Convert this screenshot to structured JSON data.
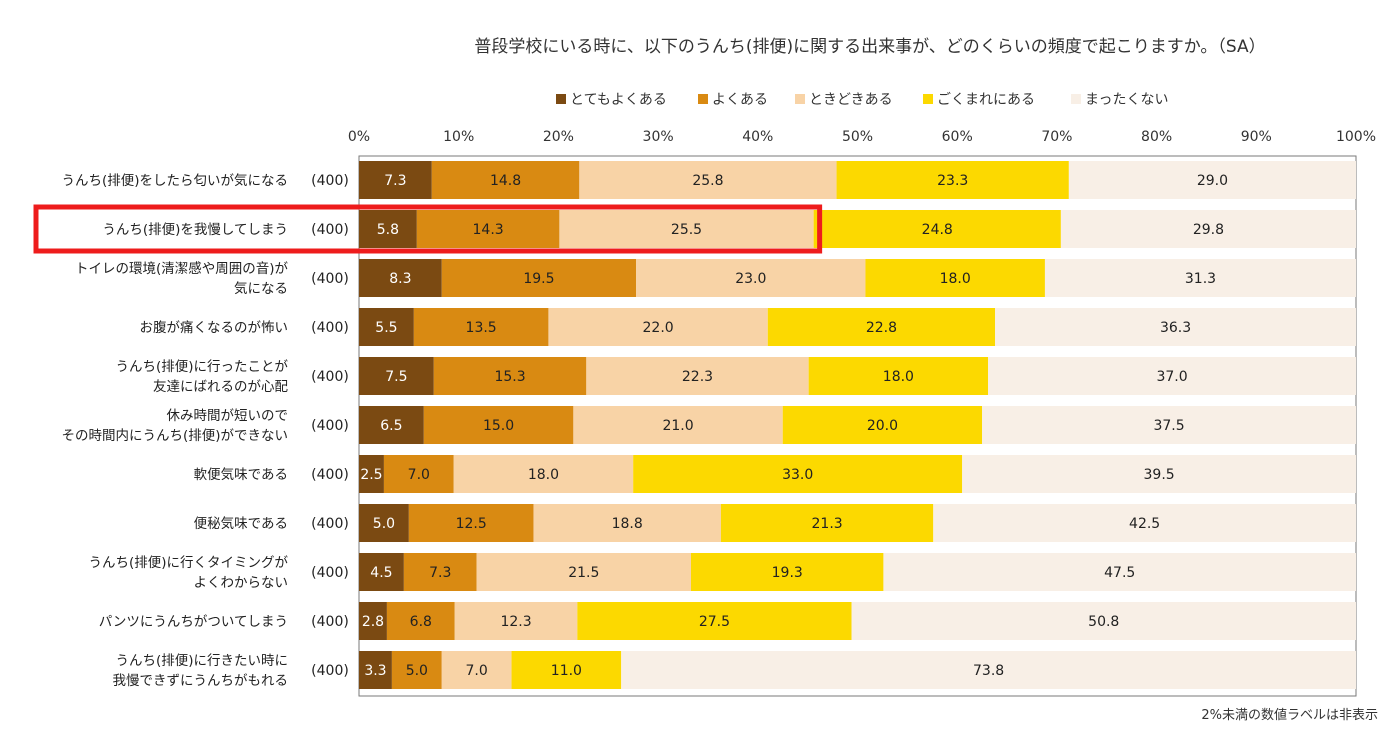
{
  "chart_data": {
    "type": "bar",
    "orientation": "horizontal",
    "stacked": true,
    "title": "普段学校にいる時に、以下のうんち(排便)に関する出来事が、どのくらいの頻度で起こりますか。（SA）",
    "xlim": [
      0,
      100
    ],
    "x_ticks": [
      "0%",
      "10%",
      "20%",
      "30%",
      "40%",
      "50%",
      "60%",
      "70%",
      "80%",
      "90%",
      "100%"
    ],
    "legend_position": "top",
    "footnote": "2%未満の数値ラベルは非表示",
    "categories": [
      "うんち(排便)をしたら匂いが気になる",
      "うんち(排便)を我慢してしまう",
      "トイレの環境(清潔感や周囲の音)が\n気になる",
      "お腹が痛くなるのが怖い",
      "うんち(排便)に行ったことが\n友達にばれるのが心配",
      "休み時間が短いので\nその時間内にうんち(排便)ができない",
      "軟便気味である",
      "便秘気味である",
      "うんち(排便)に行くタイミングが\nよくわからない",
      "パンツにうんちがついてしまう",
      "うんち(排便)に行きたい時に\n我慢できずにうんちがもれる"
    ],
    "n_labels": [
      "(400)",
      "(400)",
      "(400)",
      "(400)",
      "(400)",
      "(400)",
      "(400)",
      "(400)",
      "(400)",
      "(400)",
      "(400)"
    ],
    "series": [
      {
        "name": "とてもよくある",
        "color": "#7b4a12",
        "values": [
          7.3,
          5.8,
          8.3,
          5.5,
          7.5,
          6.5,
          2.5,
          5.0,
          4.5,
          2.8,
          3.3
        ]
      },
      {
        "name": "よくある",
        "color": "#d98a12",
        "values": [
          14.8,
          14.3,
          19.5,
          13.5,
          15.3,
          15.0,
          7.0,
          12.5,
          7.3,
          6.8,
          5.0
        ]
      },
      {
        "name": "ときどきある",
        "color": "#f8d3a6",
        "values": [
          25.8,
          25.5,
          23.0,
          22.0,
          22.3,
          21.0,
          18.0,
          18.8,
          21.5,
          12.3,
          7.0
        ]
      },
      {
        "name": "ごくまれにある",
        "color": "#fcd900",
        "values": [
          23.3,
          24.8,
          18.0,
          22.8,
          18.0,
          20.0,
          33.0,
          21.3,
          19.3,
          27.5,
          11.0
        ]
      },
      {
        "name": "まったくない",
        "color": "#f8efe6",
        "values": [
          29.0,
          29.8,
          31.3,
          36.3,
          37.0,
          37.5,
          39.5,
          42.5,
          47.5,
          50.8,
          73.8
        ]
      }
    ],
    "highlight": {
      "row": 1,
      "through_series": 2,
      "color": "#ee1c1c"
    }
  }
}
